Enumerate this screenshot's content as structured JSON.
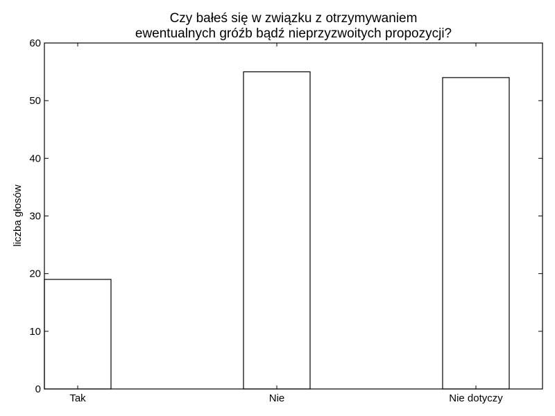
{
  "chart_data": {
    "type": "bar",
    "title_lines": [
      "Czy bałeś się w związku z otrzymywaniem",
      "ewentualnych gróźb bądź nieprzyzwoitych propozycji?"
    ],
    "categories": [
      "Tak",
      "Nie",
      "Nie dotyczy"
    ],
    "values": [
      19,
      55,
      54
    ],
    "xlabel": "",
    "ylabel": "liczba głosów",
    "ylim": [
      0,
      60
    ],
    "yticks": [
      0,
      10,
      20,
      30,
      40,
      50,
      60
    ],
    "grid": false,
    "legend": "none",
    "bar_fill": "#ffffff",
    "bar_edge": "#000000"
  }
}
